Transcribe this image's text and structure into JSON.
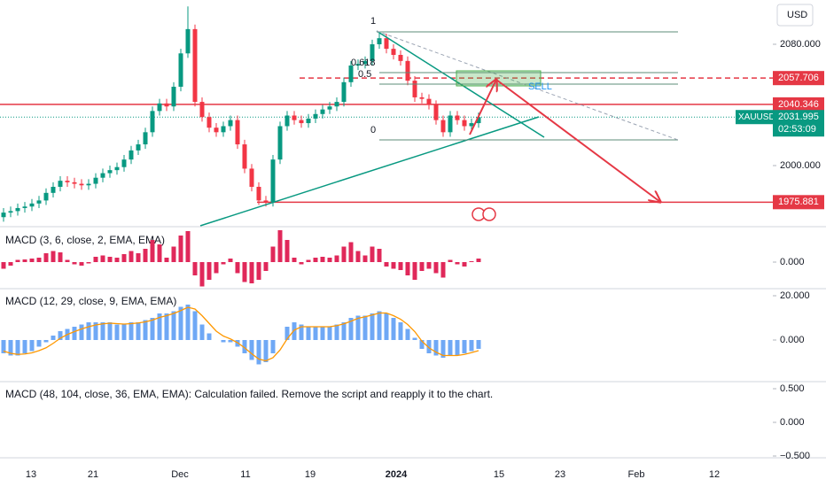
{
  "chart_data": [
    {
      "type": "candlestick",
      "symbol": "XAUUSD",
      "currency": "USD",
      "up_color": "#089981",
      "down_color": "#f23645",
      "open": [
        1966,
        1969,
        1970,
        1972,
        1973,
        1975,
        1977,
        1982,
        1986,
        1990,
        1989,
        1988,
        1987,
        1988,
        1992,
        1995,
        1997,
        1999,
        2004,
        2010,
        2014,
        2022,
        2036,
        2041,
        2039,
        2052,
        2074,
        2090,
        2042,
        2032,
        2025,
        2022,
        2026,
        2030,
        2014,
        1998,
        1986,
        1977,
        1976,
        2004,
        2026,
        2033,
        2030,
        2028,
        2031,
        2034,
        2037,
        2039,
        2042,
        2055,
        2066,
        2067,
        2069,
        2080,
        2084,
        2077,
        2073,
        2069,
        2056,
        2045,
        2044,
        2040,
        2030,
        2022,
        2033,
        2030,
        2026,
        2028
      ],
      "high": [
        1972,
        1973,
        1975,
        1976,
        1978,
        1980,
        1985,
        1989,
        1993,
        1993,
        1992,
        1991,
        1991,
        1995,
        1998,
        2000,
        2002,
        2007,
        2013,
        2017,
        2025,
        2039,
        2044,
        2044,
        2055,
        2077,
        2105,
        2093,
        2045,
        2035,
        2028,
        2029,
        2033,
        2033,
        2017,
        2001,
        1989,
        1980,
        2007,
        2029,
        2036,
        2036,
        2033,
        2034,
        2037,
        2040,
        2042,
        2045,
        2058,
        2069,
        2070,
        2072,
        2083,
        2088,
        2087,
        2080,
        2076,
        2072,
        2059,
        2048,
        2047,
        2043,
        2033,
        2036,
        2036,
        2033,
        2031,
        2035
      ],
      "low": [
        1963,
        1966,
        1967,
        1969,
        1970,
        1972,
        1974,
        1979,
        1983,
        1986,
        1985,
        1984,
        1984,
        1985,
        1989,
        1992,
        1994,
        1996,
        2001,
        2007,
        2011,
        2019,
        2033,
        2036,
        2036,
        2049,
        2071,
        2039,
        2029,
        2022,
        2019,
        2019,
        2023,
        2011,
        1995,
        1983,
        1974,
        1973,
        1973,
        2001,
        2023,
        2027,
        2025,
        2025,
        2028,
        2031,
        2034,
        2036,
        2039,
        2052,
        2063,
        2064,
        2066,
        2077,
        2074,
        2070,
        2066,
        2053,
        2042,
        2041,
        2037,
        2027,
        2019,
        2019,
        2027,
        2023,
        2023,
        2025
      ],
      "close": [
        1969,
        1970,
        1972,
        1973,
        1975,
        1977,
        1982,
        1986,
        1990,
        1989,
        1988,
        1987,
        1988,
        1992,
        1995,
        1997,
        1999,
        2004,
        2010,
        2014,
        2022,
        2036,
        2041,
        2039,
        2052,
        2074,
        2090,
        2042,
        2032,
        2025,
        2022,
        2026,
        2030,
        2014,
        1998,
        1986,
        1977,
        1976,
        2004,
        2026,
        2033,
        2030,
        2028,
        2031,
        2034,
        2037,
        2039,
        2042,
        2055,
        2066,
        2067,
        2069,
        2080,
        2084,
        2077,
        2073,
        2069,
        2056,
        2045,
        2044,
        2040,
        2030,
        2022,
        2033,
        2030,
        2026,
        2028,
        2032
      ],
      "ylim": [
        1960.3,
        2109.2
      ],
      "yticks": [
        {
          "value": 2080,
          "label": "2080.000"
        },
        {
          "value": 2000,
          "label": "2000.000"
        }
      ],
      "price_levels": [
        2057.706,
        2040.346,
        1975.881
      ],
      "last_price": 2031.995,
      "countdown": "02:53:09",
      "fib_levels": [
        "1",
        "0.618",
        "0.5",
        "0"
      ],
      "annotation": "SELL",
      "x_labels": [
        "13",
        "21",
        "Dec",
        "11",
        "19",
        "2024",
        "15",
        "23",
        "Feb",
        "12"
      ]
    },
    {
      "type": "histogram",
      "title": "MACD (3, 6, close, 2, EMA, EMA)",
      "color": "#e0285a",
      "values": [
        -1.5,
        -0.8,
        0.5,
        0.6,
        0.8,
        1.0,
        2.0,
        2.5,
        2.2,
        0.5,
        -0.5,
        -0.8,
        -0.3,
        1.2,
        1.5,
        1.2,
        1.0,
        1.8,
        2.5,
        2.0,
        3.0,
        5.0,
        4.0,
        1.0,
        3.5,
        6.0,
        7.0,
        -3.0,
        -5.5,
        -4.0,
        -2.5,
        -0.5,
        0.8,
        -2.5,
        -4.5,
        -4.8,
        -4.0,
        -2.0,
        3.5,
        7.2,
        5.0,
        1.0,
        -0.5,
        0.5,
        1.0,
        1.2,
        1.0,
        1.5,
        3.5,
        4.5,
        2.5,
        1.5,
        3.5,
        3.0,
        -1.0,
        -1.5,
        -1.8,
        -3.0,
        -4.0,
        -2.0,
        -1.5,
        -2.5,
        -3.5,
        0.5,
        -0.5,
        -1.0,
        0.2,
        0.8
      ],
      "ylim": [
        -5.8,
        7.6
      ],
      "yticks": [
        {
          "value": 0,
          "label": "0.000"
        }
      ]
    },
    {
      "type": "histogram",
      "title": "MACD (12, 29, close, 9, EMA, EMA)",
      "color": "#6fa8f5",
      "values": [
        -6,
        -7,
        -7,
        -6,
        -5,
        -3,
        -1,
        2,
        4,
        5,
        6,
        7,
        8,
        8,
        8,
        8,
        7,
        7,
        8,
        8,
        9,
        10,
        12,
        12,
        13,
        15,
        16,
        13,
        7,
        3,
        0,
        -1,
        -1,
        -3,
        -6,
        -9,
        -11,
        -10,
        -6,
        0,
        6,
        8,
        7,
        6,
        6,
        6,
        6,
        7,
        8,
        10,
        11,
        11,
        12,
        13,
        12,
        10,
        8,
        5,
        1,
        -4,
        -6,
        -7,
        -8,
        -7,
        -7,
        -6,
        -5,
        -4
      ],
      "signal": [
        -5,
        -6,
        -6.5,
        -6.3,
        -5.8,
        -4.8,
        -3.5,
        -1.5,
        0.8,
        2.5,
        3.8,
        5,
        6,
        6.8,
        7.3,
        7.6,
        7.4,
        7.2,
        7.4,
        7.7,
        8.2,
        9,
        10.2,
        11,
        12,
        13.3,
        14.8,
        14,
        11,
        7.5,
        4,
        1.8,
        0.5,
        -1.2,
        -3.5,
        -6.2,
        -8.6,
        -9.4,
        -8,
        -4.5,
        0.5,
        4.5,
        6,
        6,
        6,
        6,
        6,
        6.5,
        7.3,
        8.5,
        9.8,
        10.5,
        11.3,
        12.2,
        12.2,
        11,
        9.4,
        7,
        3.8,
        -0.5,
        -3.5,
        -5.5,
        -7,
        -7,
        -7,
        -6.5,
        -5.7,
        -4.8
      ],
      "signal_color": "#ff9800",
      "ylim": [
        -18.4,
        22.8
      ],
      "yticks": [
        {
          "value": 20,
          "label": "20.000"
        },
        {
          "value": 0,
          "label": "0.000"
        }
      ]
    },
    {
      "type": "histogram",
      "title": "MACD (48, 104, close, 36, EMA, EMA): Calculation failed. Remove the script and reapply it to the chart.",
      "ylim": [
        -0.5,
        0.592
      ],
      "yticks": [
        {
          "value": 0.5,
          "label": "0.500"
        },
        {
          "value": 0,
          "label": "0.000"
        },
        {
          "value": -0.5,
          "label": "−0.500"
        }
      ]
    }
  ]
}
